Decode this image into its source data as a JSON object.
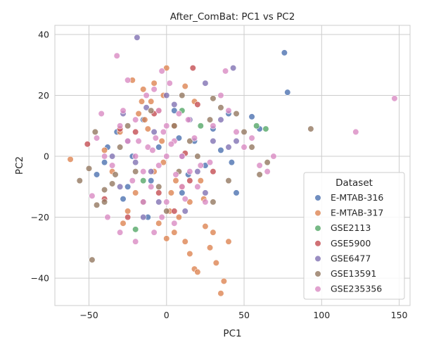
{
  "chart_data": {
    "type": "scatter",
    "title": "After_ComBat: PC1 vs PC2",
    "xlabel": "PC1",
    "ylabel": "PC2",
    "xlim": [
      -72,
      157
    ],
    "ylim": [
      -49,
      43
    ],
    "xticks": [
      -50,
      0,
      50,
      100,
      150
    ],
    "yticks": [
      40,
      20,
      0,
      -20,
      -40
    ],
    "xtick_labels": [
      "−50",
      "0",
      "50",
      "100",
      "150"
    ],
    "ytick_labels": [
      "40",
      "20",
      "0",
      "−20",
      "−40"
    ],
    "grid": true,
    "legend_position": "lower-right",
    "legend_title": "Dataset",
    "series": [
      {
        "name": "E-MTAB-316",
        "color": "#4c72b0",
        "points": [
          [
            76,
            34
          ],
          [
            78,
            21
          ],
          [
            55,
            13
          ],
          [
            60,
            9
          ],
          [
            42,
            -2
          ],
          [
            -45,
            -6
          ],
          [
            -25,
            -10
          ],
          [
            -40,
            -2
          ],
          [
            -32,
            8
          ],
          [
            18,
            5
          ],
          [
            -10,
            -8
          ],
          [
            5,
            15
          ],
          [
            25,
            -3
          ],
          [
            35,
            2
          ],
          [
            -15,
            12
          ],
          [
            10,
            -12
          ],
          [
            -28,
            -14
          ],
          [
            45,
            -12
          ],
          [
            -5,
            3
          ],
          [
            30,
            9
          ],
          [
            -38,
            3
          ],
          [
            14,
            -6
          ],
          [
            -22,
            0
          ],
          [
            8,
            6
          ],
          [
            40,
            14
          ],
          [
            -12,
            -20
          ]
        ]
      },
      {
        "name": "E-MTAB-317",
        "color": "#dd8452",
        "points": [
          [
            -62,
            -1
          ],
          [
            -22,
            25
          ],
          [
            -15,
            22
          ],
          [
            -10,
            18
          ],
          [
            -5,
            15
          ],
          [
            0,
            29
          ],
          [
            -2,
            20
          ],
          [
            -12,
            9
          ],
          [
            -18,
            14
          ],
          [
            2,
            -18
          ],
          [
            5,
            -25
          ],
          [
            8,
            -20
          ],
          [
            12,
            -28
          ],
          [
            15,
            -32
          ],
          [
            18,
            -37
          ],
          [
            20,
            -38
          ],
          [
            25,
            -23
          ],
          [
            28,
            -30
          ],
          [
            32,
            -35
          ],
          [
            35,
            -45
          ],
          [
            37,
            -41
          ],
          [
            40,
            -28
          ],
          [
            0,
            -27
          ],
          [
            -5,
            -22
          ],
          [
            3,
            -12
          ],
          [
            10,
            -10
          ],
          [
            -8,
            -5
          ],
          [
            15,
            -15
          ],
          [
            -20,
            -12
          ],
          [
            -25,
            -18
          ],
          [
            -28,
            -22
          ],
          [
            22,
            -8
          ],
          [
            30,
            -25
          ],
          [
            5,
            10
          ],
          [
            -3,
            5
          ],
          [
            -30,
            8
          ],
          [
            18,
            18
          ],
          [
            -8,
            24
          ],
          [
            -14,
            12
          ],
          [
            6,
            -8
          ],
          [
            -35,
            -5
          ],
          [
            -40,
            2
          ],
          [
            12,
            23
          ],
          [
            -16,
            18
          ],
          [
            24,
            -14
          ],
          [
            -2,
            -2
          ]
        ]
      },
      {
        "name": "GSE2113",
        "color": "#55a868",
        "points": [
          [
            58,
            10
          ],
          [
            64,
            9
          ],
          [
            -20,
            -24
          ],
          [
            -15,
            -8
          ],
          [
            10,
            15
          ],
          [
            22,
            10
          ]
        ]
      },
      {
        "name": "GSE5900",
        "color": "#c44e52",
        "points": [
          [
            -51,
            4
          ],
          [
            17,
            29
          ],
          [
            -30,
            9
          ],
          [
            5,
            -18
          ],
          [
            -20,
            8
          ],
          [
            12,
            1
          ],
          [
            -25,
            -20
          ],
          [
            30,
            -5
          ],
          [
            -8,
            14
          ],
          [
            20,
            17
          ],
          [
            -40,
            -14
          ],
          [
            -5,
            -12
          ],
          [
            15,
            -8
          ]
        ]
      },
      {
        "name": "GSE6477",
        "color": "#8172b3",
        "points": [
          [
            -19,
            39
          ],
          [
            43,
            29
          ],
          [
            25,
            24
          ],
          [
            0,
            20
          ],
          [
            -13,
            16
          ],
          [
            -30,
            -10
          ],
          [
            -25,
            5
          ],
          [
            -10,
            -5
          ],
          [
            10,
            0
          ],
          [
            20,
            -5
          ],
          [
            30,
            5
          ],
          [
            35,
            12
          ],
          [
            -5,
            -15
          ],
          [
            -15,
            -20
          ],
          [
            5,
            17
          ],
          [
            -35,
            0
          ],
          [
            40,
            3
          ],
          [
            15,
            12
          ],
          [
            -20,
            -2
          ],
          [
            25,
            -12
          ],
          [
            -8,
            8
          ],
          [
            12,
            -18
          ],
          [
            -28,
            14
          ],
          [
            45,
            5
          ]
        ]
      },
      {
        "name": "GSE13591",
        "color": "#937860",
        "points": [
          [
            -48,
            -34
          ],
          [
            -56,
            -8
          ],
          [
            -50,
            -4
          ],
          [
            -40,
            -11
          ],
          [
            -45,
            -16
          ],
          [
            -40,
            -15
          ],
          [
            -35,
            -9
          ],
          [
            93,
            9
          ],
          [
            65,
            -2
          ],
          [
            60,
            -6
          ],
          [
            55,
            3
          ],
          [
            50,
            8
          ],
          [
            45,
            14
          ],
          [
            35,
            16
          ],
          [
            30,
            19
          ],
          [
            -30,
            3
          ],
          [
            -10,
            15
          ],
          [
            5,
            10
          ],
          [
            -20,
            -5
          ],
          [
            20,
            0
          ],
          [
            40,
            -8
          ],
          [
            -5,
            -10
          ],
          [
            15,
            5
          ],
          [
            -25,
            10
          ],
          [
            30,
            -15
          ],
          [
            0,
            -18
          ],
          [
            -15,
            -15
          ],
          [
            -46,
            8
          ],
          [
            10,
            20
          ],
          [
            28,
            12
          ],
          [
            -33,
            -6
          ],
          [
            8,
            -5
          ]
        ]
      },
      {
        "name": "GSE235356",
        "color": "#da8bc3",
        "points": [
          [
            147,
            19
          ],
          [
            122,
            8
          ],
          [
            -32,
            33
          ],
          [
            -25,
            25
          ],
          [
            -20,
            12
          ],
          [
            -13,
            20
          ],
          [
            -5,
            15
          ],
          [
            0,
            10
          ],
          [
            5,
            5
          ],
          [
            10,
            0
          ],
          [
            15,
            -5
          ],
          [
            20,
            -10
          ],
          [
            25,
            -15
          ],
          [
            -10,
            -10
          ],
          [
            -15,
            -5
          ],
          [
            -20,
            0
          ],
          [
            -25,
            5
          ],
          [
            -30,
            10
          ],
          [
            -35,
            -3
          ],
          [
            -40,
            0
          ],
          [
            -45,
            6
          ],
          [
            -48,
            -13
          ],
          [
            -38,
            -20
          ],
          [
            -30,
            -25
          ],
          [
            -20,
            -28
          ],
          [
            -8,
            -25
          ],
          [
            0,
            -15
          ],
          [
            5,
            -22
          ],
          [
            12,
            -14
          ],
          [
            30,
            10
          ],
          [
            35,
            20
          ],
          [
            40,
            15
          ],
          [
            45,
            8
          ],
          [
            50,
            3
          ],
          [
            55,
            6
          ],
          [
            60,
            -3
          ],
          [
            65,
            -5
          ],
          [
            69,
            0
          ],
          [
            -3,
            28
          ],
          [
            -8,
            22
          ],
          [
            2,
            24
          ],
          [
            8,
            14
          ],
          [
            -12,
            3
          ],
          [
            -5,
            -3
          ],
          [
            0,
            0
          ],
          [
            3,
            4
          ],
          [
            -7,
            6
          ],
          [
            -15,
            -15
          ],
          [
            -2,
            8
          ],
          [
            6,
            -6
          ],
          [
            -9,
            2
          ],
          [
            18,
            6
          ],
          [
            -22,
            -8
          ],
          [
            22,
            -3
          ],
          [
            -28,
            15
          ],
          [
            28,
            -2
          ],
          [
            -3,
            -20
          ],
          [
            14,
            12
          ],
          [
            -18,
            5
          ],
          [
            10,
            -10
          ],
          [
            38,
            28
          ],
          [
            -42,
            14
          ]
        ]
      }
    ]
  }
}
